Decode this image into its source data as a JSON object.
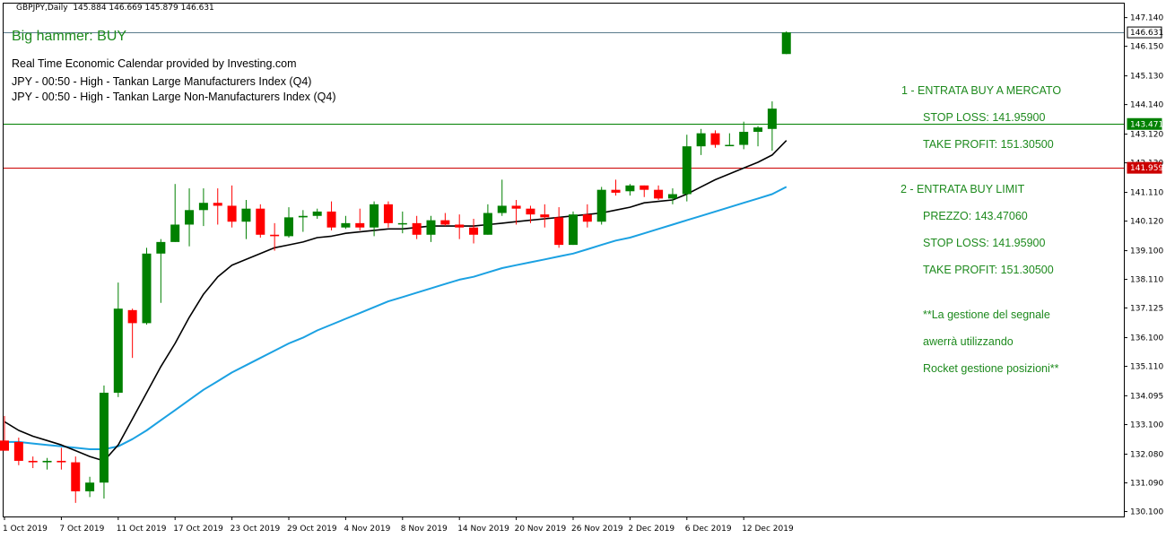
{
  "header": {
    "symbol_tf": "GBPJPY,Daily",
    "ohlc": "145.884 146.669 145.879 146.631"
  },
  "signal": {
    "text": "Big hammer: BUY"
  },
  "calendar": {
    "title": "Real Time Economic Calendar provided by Investing.com",
    "events": [
      "JPY - 00:50 - High - Tankan Large Manufacturers Index (Q4)",
      "JPY - 00:50 - High - Tankan Large Non-Manufacturers Index (Q4)"
    ]
  },
  "annotations": [
    "1 - ENTRATA BUY A MERCATO",
    "STOP LOSS: 141.95900",
    "TAKE PROFIT: 151.30500",
    "2 - ENTRATA BUY LIMIT",
    "PREZZO: 143.47060",
    "STOP LOSS: 141.95900",
    "TAKE PROFIT: 151.30500",
    "**La gestione del segnale",
    "awerrà utilizzando",
    "Rocket gestione posizioni**"
  ],
  "colors": {
    "bull": "#008000",
    "bear": "#ff0000",
    "ma_fast": "#000000",
    "ma_slow": "#1ba1e2",
    "level_green": "#008000",
    "level_red": "#cc0000",
    "last_price_line": "#5a7b8c",
    "annotation": "#1d8a1d"
  },
  "chart_data": {
    "type": "candlestick",
    "ylim": [
      129.9,
      147.5
    ],
    "y_ticks": [
      "147.140",
      "146.150",
      "145.130",
      "144.140",
      "143.120",
      "142.130",
      "141.110",
      "140.120",
      "139.100",
      "138.110",
      "137.125",
      "136.100",
      "135.110",
      "134.095",
      "133.100",
      "132.080",
      "131.090",
      "130.100"
    ],
    "x_ticks": [
      "1 Oct 2019",
      "7 Oct 2019",
      "11 Oct 2019",
      "17 Oct 2019",
      "23 Oct 2019",
      "29 Oct 2019",
      "4 Nov 2019",
      "8 Nov 2019",
      "14 Nov 2019",
      "20 Nov 2019",
      "26 Nov 2019",
      "2 Dec 2019",
      "6 Dec 2019",
      "12 Dec 2019"
    ],
    "x_tick_bar_index": [
      0,
      4,
      8,
      12,
      16,
      20,
      24,
      28,
      32,
      36,
      40,
      44,
      48,
      52
    ],
    "candles": [
      {
        "o": 132.55,
        "h": 133.4,
        "l": 132.2,
        "c": 132.2
      },
      {
        "o": 132.5,
        "h": 132.65,
        "l": 131.7,
        "c": 131.85
      },
      {
        "o": 131.85,
        "h": 132.0,
        "l": 131.6,
        "c": 131.8
      },
      {
        "o": 131.8,
        "h": 131.95,
        "l": 131.55,
        "c": 131.85
      },
      {
        "o": 131.85,
        "h": 132.3,
        "l": 131.55,
        "c": 131.8
      },
      {
        "o": 131.8,
        "h": 132.0,
        "l": 130.4,
        "c": 130.8
      },
      {
        "o": 130.8,
        "h": 131.3,
        "l": 130.6,
        "c": 131.1
      },
      {
        "o": 131.1,
        "h": 134.45,
        "l": 130.55,
        "c": 134.2
      },
      {
        "o": 134.2,
        "h": 138.0,
        "l": 134.05,
        "c": 137.1
      },
      {
        "o": 137.05,
        "h": 137.1,
        "l": 135.4,
        "c": 136.6
      },
      {
        "o": 136.6,
        "h": 139.2,
        "l": 136.55,
        "c": 139.0
      },
      {
        "o": 139.0,
        "h": 139.5,
        "l": 137.3,
        "c": 139.4
      },
      {
        "o": 139.4,
        "h": 141.4,
        "l": 139.4,
        "c": 140.0
      },
      {
        "o": 140.0,
        "h": 141.25,
        "l": 139.25,
        "c": 140.5
      },
      {
        "o": 140.5,
        "h": 141.25,
        "l": 139.95,
        "c": 140.75
      },
      {
        "o": 140.75,
        "h": 141.25,
        "l": 140.0,
        "c": 140.65
      },
      {
        "o": 140.65,
        "h": 141.35,
        "l": 139.9,
        "c": 140.1
      },
      {
        "o": 140.1,
        "h": 140.85,
        "l": 139.5,
        "c": 140.55
      },
      {
        "o": 140.55,
        "h": 140.7,
        "l": 139.55,
        "c": 139.65
      },
      {
        "o": 139.65,
        "h": 140.05,
        "l": 139.1,
        "c": 139.6
      },
      {
        "o": 139.6,
        "h": 140.6,
        "l": 139.55,
        "c": 140.25
      },
      {
        "o": 140.25,
        "h": 140.5,
        "l": 139.75,
        "c": 140.3
      },
      {
        "o": 140.3,
        "h": 140.55,
        "l": 140.2,
        "c": 140.45
      },
      {
        "o": 140.45,
        "h": 140.8,
        "l": 139.8,
        "c": 139.9
      },
      {
        "o": 139.9,
        "h": 140.3,
        "l": 139.85,
        "c": 140.05
      },
      {
        "o": 140.05,
        "h": 140.55,
        "l": 139.8,
        "c": 139.9
      },
      {
        "o": 139.9,
        "h": 140.8,
        "l": 139.6,
        "c": 140.7
      },
      {
        "o": 140.7,
        "h": 140.8,
        "l": 139.9,
        "c": 140.05
      },
      {
        "o": 140.05,
        "h": 140.45,
        "l": 139.7,
        "c": 140.05
      },
      {
        "o": 140.05,
        "h": 140.3,
        "l": 139.5,
        "c": 139.65
      },
      {
        "o": 139.65,
        "h": 140.3,
        "l": 139.4,
        "c": 140.15
      },
      {
        "o": 140.15,
        "h": 140.4,
        "l": 139.95,
        "c": 140.0
      },
      {
        "o": 140.0,
        "h": 140.35,
        "l": 139.5,
        "c": 139.9
      },
      {
        "o": 139.9,
        "h": 140.2,
        "l": 139.35,
        "c": 139.65
      },
      {
        "o": 139.65,
        "h": 140.7,
        "l": 139.65,
        "c": 140.4
      },
      {
        "o": 140.4,
        "h": 141.55,
        "l": 140.3,
        "c": 140.65
      },
      {
        "o": 140.65,
        "h": 140.85,
        "l": 140.0,
        "c": 140.55
      },
      {
        "o": 140.55,
        "h": 140.65,
        "l": 140.05,
        "c": 140.35
      },
      {
        "o": 140.35,
        "h": 140.7,
        "l": 139.9,
        "c": 140.25
      },
      {
        "o": 140.25,
        "h": 140.6,
        "l": 139.2,
        "c": 139.3
      },
      {
        "o": 139.3,
        "h": 140.45,
        "l": 139.3,
        "c": 140.35
      },
      {
        "o": 140.35,
        "h": 140.7,
        "l": 139.9,
        "c": 140.1
      },
      {
        "o": 140.1,
        "h": 141.3,
        "l": 140.0,
        "c": 141.2
      },
      {
        "o": 141.2,
        "h": 141.55,
        "l": 141.0,
        "c": 141.1
      },
      {
        "o": 141.15,
        "h": 141.4,
        "l": 141.0,
        "c": 141.35
      },
      {
        "o": 141.35,
        "h": 141.35,
        "l": 140.95,
        "c": 141.2
      },
      {
        "o": 141.2,
        "h": 141.35,
        "l": 140.85,
        "c": 140.9
      },
      {
        "o": 140.9,
        "h": 141.25,
        "l": 140.7,
        "c": 141.05
      },
      {
        "o": 141.05,
        "h": 143.1,
        "l": 140.8,
        "c": 142.7
      },
      {
        "o": 142.7,
        "h": 143.3,
        "l": 142.4,
        "c": 143.15
      },
      {
        "o": 143.15,
        "h": 143.25,
        "l": 142.65,
        "c": 142.75
      },
      {
        "o": 142.75,
        "h": 143.15,
        "l": 142.75,
        "c": 142.75
      },
      {
        "o": 142.75,
        "h": 143.55,
        "l": 142.6,
        "c": 143.2
      },
      {
        "o": 143.2,
        "h": 143.4,
        "l": 142.7,
        "c": 143.35
      },
      {
        "o": 143.3,
        "h": 144.25,
        "l": 142.55,
        "c": 144.0
      },
      {
        "o": 145.884,
        "h": 146.669,
        "l": 145.879,
        "c": 146.631
      }
    ],
    "ma_fast": [
      133.2,
      132.9,
      132.7,
      132.55,
      132.4,
      132.2,
      132.0,
      131.85,
      132.4,
      133.3,
      134.2,
      135.1,
      135.9,
      136.8,
      137.6,
      138.2,
      138.6,
      138.8,
      139.0,
      139.2,
      139.3,
      139.4,
      139.55,
      139.6,
      139.7,
      139.75,
      139.8,
      139.85,
      139.85,
      139.9,
      139.95,
      139.95,
      139.95,
      139.95,
      140.0,
      140.05,
      140.1,
      140.15,
      140.2,
      140.25,
      140.3,
      140.35,
      140.4,
      140.5,
      140.6,
      140.75,
      140.8,
      140.85,
      141.05,
      141.3,
      141.55,
      141.75,
      141.95,
      142.15,
      142.4,
      142.9
    ],
    "ma_slow": [
      132.5,
      132.5,
      132.45,
      132.4,
      132.35,
      132.3,
      132.25,
      132.25,
      132.35,
      132.6,
      132.9,
      133.25,
      133.6,
      133.95,
      134.3,
      134.6,
      134.9,
      135.15,
      135.4,
      135.65,
      135.9,
      136.1,
      136.35,
      136.55,
      136.75,
      136.95,
      137.15,
      137.35,
      137.5,
      137.65,
      137.8,
      137.95,
      138.1,
      138.2,
      138.35,
      138.5,
      138.6,
      138.7,
      138.8,
      138.9,
      139.0,
      139.15,
      139.3,
      139.45,
      139.55,
      139.7,
      139.85,
      140.0,
      140.15,
      140.3,
      140.45,
      140.6,
      140.75,
      140.9,
      141.05,
      141.3
    ],
    "levels": [
      {
        "price": 143.471,
        "label": "143.471",
        "color": "#008000"
      },
      {
        "price": 141.959,
        "label": "141.959",
        "color": "#cc0000"
      },
      {
        "price": 146.631,
        "label": "146.631",
        "color": "#5a7b8c"
      }
    ]
  }
}
